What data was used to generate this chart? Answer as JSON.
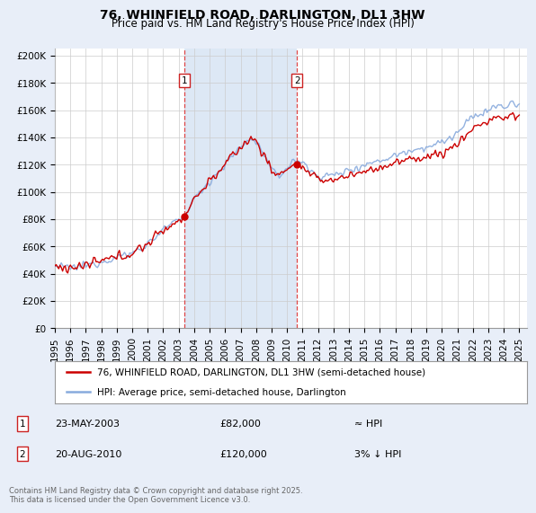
{
  "title": "76, WHINFIELD ROAD, DARLINGTON, DL1 3HW",
  "subtitle": "Price paid vs. HM Land Registry's House Price Index (HPI)",
  "ylabel_ticks": [
    "£0",
    "£20K",
    "£40K",
    "£60K",
    "£80K",
    "£100K",
    "£120K",
    "£140K",
    "£160K",
    "£180K",
    "£200K"
  ],
  "ytick_vals": [
    0,
    20000,
    40000,
    60000,
    80000,
    100000,
    120000,
    140000,
    160000,
    180000,
    200000
  ],
  "ylim": [
    0,
    205000
  ],
  "xlim_start": 1995.0,
  "xlim_end": 2025.5,
  "sale1_x": 2003.388,
  "sale1_y": 82000,
  "sale1_label": "1",
  "sale1_date": "23-MAY-2003",
  "sale1_price": "£82,000",
  "sale1_hpi": "≈ HPI",
  "sale2_x": 2010.638,
  "sale2_y": 120000,
  "sale2_label": "2",
  "sale2_date": "20-AUG-2010",
  "sale2_price": "£120,000",
  "sale2_hpi": "3% ↓ HPI",
  "line_color_price": "#cc0000",
  "line_color_hpi": "#88aadd",
  "vline_color": "#dd3333",
  "shade_color": "#dde8f5",
  "background_color": "#e8eef8",
  "plot_bg_color": "#ffffff",
  "grid_color": "#cccccc",
  "legend_line1": "76, WHINFIELD ROAD, DARLINGTON, DL1 3HW (semi-detached house)",
  "legend_line2": "HPI: Average price, semi-detached house, Darlington",
  "footer": "Contains HM Land Registry data © Crown copyright and database right 2025.\nThis data is licensed under the Open Government Licence v3.0.",
  "title_fontsize": 10,
  "subtitle_fontsize": 8.5,
  "tick_fontsize": 7.5,
  "legend_fontsize": 7.5,
  "footer_fontsize": 6.0
}
